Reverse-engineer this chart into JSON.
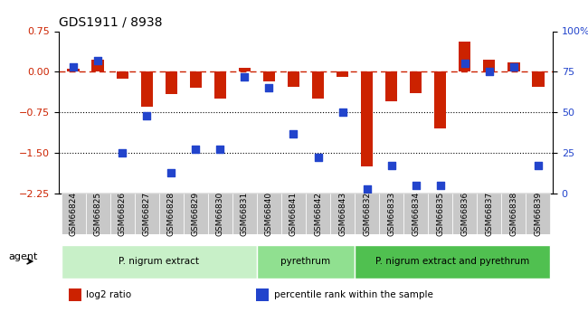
{
  "title": "GDS1911 / 8938",
  "samples": [
    "GSM66824",
    "GSM66825",
    "GSM66826",
    "GSM66827",
    "GSM66828",
    "GSM66829",
    "GSM66830",
    "GSM66831",
    "GSM66840",
    "GSM66841",
    "GSM66842",
    "GSM66843",
    "GSM66832",
    "GSM66833",
    "GSM66834",
    "GSM66835",
    "GSM66836",
    "GSM66837",
    "GSM66838",
    "GSM66839"
  ],
  "log2_ratio": [
    0.05,
    0.22,
    -0.12,
    -0.65,
    -0.42,
    -0.3,
    -0.5,
    0.08,
    -0.18,
    -0.28,
    -0.5,
    -0.1,
    -1.75,
    -0.55,
    -0.4,
    -1.05,
    0.55,
    0.22,
    0.18,
    -0.28
  ],
  "pct_rank": [
    78,
    82,
    25,
    48,
    13,
    27,
    27,
    72,
    65,
    37,
    22,
    50,
    3,
    17,
    5,
    5,
    80,
    75,
    78,
    17
  ],
  "ylim_left": [
    -2.25,
    0.75
  ],
  "ylim_right": [
    0,
    100
  ],
  "yticks_left": [
    0.75,
    0.0,
    -0.75,
    -1.5,
    -2.25
  ],
  "yticks_right": [
    100,
    75,
    50,
    25,
    0
  ],
  "hline_y": 0.0,
  "dotted_lines": [
    -0.75,
    -1.5
  ],
  "groups": [
    {
      "label": "P. nigrum extract",
      "start": 0,
      "end": 8,
      "color": "#c8f0c8"
    },
    {
      "label": "pyrethrum",
      "start": 8,
      "end": 12,
      "color": "#90e090"
    },
    {
      "label": "P. nigrum extract and pyrethrum",
      "start": 12,
      "end": 20,
      "color": "#50c050"
    }
  ],
  "bar_color": "#cc2200",
  "dot_color": "#2244cc",
  "bar_width": 0.5,
  "dot_size": 40,
  "legend_labels": [
    "log2 ratio",
    "percentile rank within the sample"
  ],
  "legend_colors": [
    "#cc2200",
    "#2244cc"
  ],
  "agent_label": "agent",
  "background_color": "#ffffff",
  "axis_label_color_left": "#cc2200",
  "axis_label_color_right": "#2244cc"
}
